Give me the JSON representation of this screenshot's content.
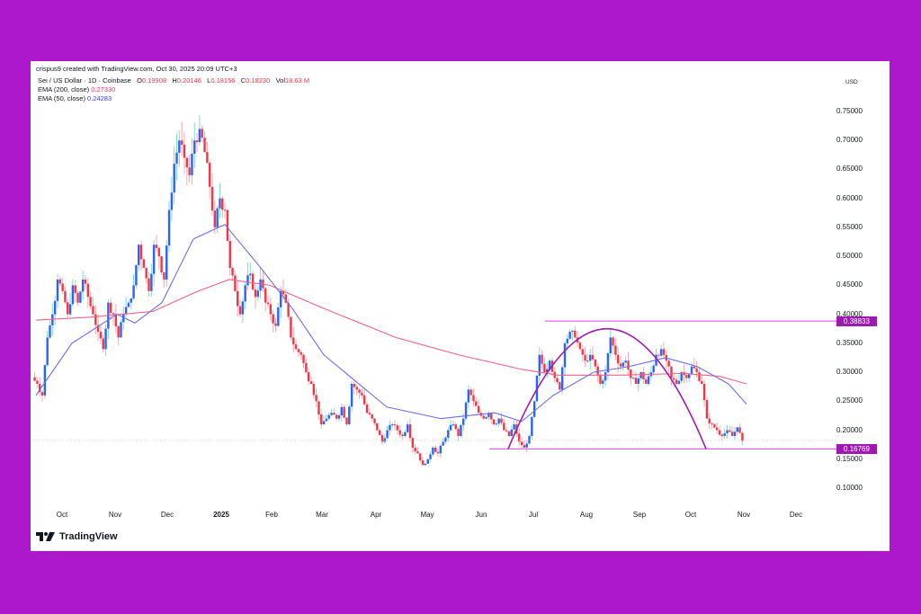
{
  "header": {
    "credit": "crispus9 created with TradingView.com, Oct 30, 2025 20:09 UTC+3",
    "symbol": "Sei / US Dollar · 1D · Coinbase",
    "ohlc": {
      "o_label": "O",
      "o": "0.19908",
      "h_label": "H",
      "h": "0.20146",
      "l_label": "L",
      "l": "0.18156",
      "c_label": "C",
      "c": "0.18230",
      "vol_label": "Vol",
      "vol": "18.63 M"
    },
    "ema200": {
      "label": "EMA (200, close)",
      "value": "0.27330"
    },
    "ema50": {
      "label": "EMA (50, close)",
      "value": "0.24283"
    }
  },
  "y_axis": {
    "currency": "USD",
    "ticks": [
      "0.75000",
      "0.70000",
      "0.65000",
      "0.60000",
      "0.55000",
      "0.50000",
      "0.45000",
      "0.40000",
      "0.35000",
      "0.30000",
      "0.25000",
      "0.20000",
      "0.15000",
      "0.10000"
    ]
  },
  "x_axis": {
    "ticks": [
      "Oct",
      "Nov",
      "Dec",
      "2025",
      "Feb",
      "Mar",
      "Apr",
      "May",
      "Jun",
      "Jul",
      "Aug",
      "Sep",
      "Oct",
      "Nov",
      "Dec"
    ]
  },
  "price_tags": {
    "resistance": "0.38833",
    "support": "0.16769"
  },
  "branding": {
    "logo_text": "TradingView"
  },
  "colors": {
    "background": "#ae18cc",
    "up": "#2962ff",
    "down": "#f23645",
    "wick_up": "#7fdcd0",
    "wick_down": "#f7a8b0",
    "ema200": "#f2628a",
    "ema50": "#6b6bf0",
    "annotation": "#9c1ab0",
    "hline": "#d66be0"
  },
  "chart_data": {
    "type": "candlestick",
    "title": "Sei / US Dollar · 1D · Coinbase",
    "xlabel": "",
    "ylabel": "USD",
    "ylim": [
      0.08,
      0.78
    ],
    "grid": false,
    "x": [
      "Oct 2024",
      "Nov 2024",
      "Dec 2024",
      "Jan 2025",
      "Feb 2025",
      "Mar 2025",
      "Apr 2025",
      "May 2025",
      "Jun 2025",
      "Jul 2025",
      "Aug 2025",
      "Sep 2025",
      "Oct 2025",
      "Nov 2025"
    ],
    "close_path": [
      [
        0.28,
        0.26,
        0.36,
        0.4,
        0.46,
        0.44,
        0.4,
        0.45,
        0.42,
        0.46,
        0.43,
        0.4,
        0.37,
        0.34,
        0.42,
        0.4
      ],
      [
        0.36,
        0.4,
        0.42,
        0.45,
        0.52,
        0.48,
        0.44,
        0.52,
        0.5,
        0.46,
        0.58,
        0.66,
        0.7,
        0.67,
        0.64,
        0.7
      ],
      [
        0.72,
        0.68,
        0.62,
        0.55,
        0.6,
        0.58,
        0.48,
        0.44,
        0.4,
        0.45,
        0.47,
        0.43,
        0.46,
        0.42,
        0.4,
        0.38
      ],
      [
        0.44,
        0.42,
        0.36,
        0.34,
        0.33,
        0.3,
        0.28,
        0.25,
        0.21,
        0.22,
        0.23,
        0.22,
        0.24,
        0.21,
        0.28,
        0.27
      ],
      [
        0.26,
        0.23,
        0.22,
        0.2,
        0.18,
        0.2,
        0.21,
        0.2,
        0.19,
        0.21,
        0.17,
        0.16,
        0.14,
        0.15,
        0.17,
        0.16
      ],
      [
        0.18,
        0.2,
        0.21,
        0.19,
        0.22,
        0.27,
        0.25,
        0.23,
        0.22,
        0.23,
        0.21,
        0.22,
        0.2,
        0.19,
        0.21,
        0.18
      ],
      [
        0.17,
        0.19,
        0.25,
        0.33,
        0.3,
        0.32,
        0.29,
        0.27,
        0.35,
        0.37,
        0.36,
        0.34,
        0.32,
        0.33,
        0.31,
        0.28
      ],
      [
        0.3,
        0.36,
        0.33,
        0.31,
        0.32,
        0.29,
        0.28,
        0.3,
        0.28,
        0.3,
        0.33,
        0.34,
        0.32,
        0.29,
        0.28,
        0.3
      ],
      [
        0.29,
        0.31,
        0.3,
        0.28,
        0.22,
        0.21,
        0.2,
        0.19,
        0.2,
        0.19,
        0.205,
        0.182
      ]
    ],
    "series": [
      {
        "name": "EMA (200, close)",
        "last": 0.2733,
        "points": [
          [
            0,
            0.39
          ],
          [
            60,
            0.395
          ],
          [
            130,
            0.405
          ],
          [
            180,
            0.44
          ],
          [
            215,
            0.46
          ],
          [
            260,
            0.45
          ],
          [
            320,
            0.41
          ],
          [
            400,
            0.36
          ],
          [
            470,
            0.33
          ],
          [
            540,
            0.305
          ],
          [
            580,
            0.295
          ],
          [
            650,
            0.295
          ],
          [
            720,
            0.298
          ],
          [
            760,
            0.293
          ],
          [
            790,
            0.28
          ]
        ]
      },
      {
        "name": "EMA (50, close)",
        "last": 0.24283,
        "points": [
          [
            0,
            0.26
          ],
          [
            40,
            0.35
          ],
          [
            90,
            0.4
          ],
          [
            110,
            0.385
          ],
          [
            140,
            0.42
          ],
          [
            175,
            0.53
          ],
          [
            210,
            0.555
          ],
          [
            250,
            0.48
          ],
          [
            285,
            0.41
          ],
          [
            320,
            0.33
          ],
          [
            390,
            0.24
          ],
          [
            450,
            0.22
          ],
          [
            510,
            0.23
          ],
          [
            540,
            0.215
          ],
          [
            575,
            0.26
          ],
          [
            620,
            0.3
          ],
          [
            660,
            0.31
          ],
          [
            700,
            0.325
          ],
          [
            735,
            0.31
          ],
          [
            770,
            0.28
          ],
          [
            790,
            0.245
          ]
        ]
      }
    ],
    "annotations": {
      "resistance_line": {
        "price": 0.38833,
        "x_start": 572
      },
      "support_line": {
        "price": 0.16769,
        "x_start": 510
      },
      "arc": {
        "start": [
          531,
          0.1677
        ],
        "apex": [
          641,
          0.375
        ],
        "end": [
          751,
          0.1677
        ]
      },
      "last_price_dotted_line": 0.1823
    }
  }
}
